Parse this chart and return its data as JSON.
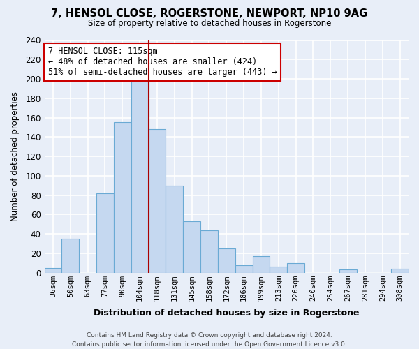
{
  "title": "7, HENSOL CLOSE, ROGERSTONE, NEWPORT, NP10 9AG",
  "subtitle": "Size of property relative to detached houses in Rogerstone",
  "xlabel": "Distribution of detached houses by size in Rogerstone",
  "ylabel": "Number of detached properties",
  "bin_labels": [
    "36sqm",
    "50sqm",
    "63sqm",
    "77sqm",
    "90sqm",
    "104sqm",
    "118sqm",
    "131sqm",
    "145sqm",
    "158sqm",
    "172sqm",
    "186sqm",
    "199sqm",
    "213sqm",
    "226sqm",
    "240sqm",
    "254sqm",
    "267sqm",
    "281sqm",
    "294sqm",
    "308sqm"
  ],
  "bar_values": [
    5,
    35,
    0,
    82,
    155,
    200,
    148,
    90,
    53,
    44,
    25,
    8,
    17,
    6,
    10,
    0,
    0,
    3,
    0,
    0,
    4
  ],
  "bar_color": "#c5d8f0",
  "bar_edge_color": "#6aaad4",
  "vline_index": 6,
  "vline_color": "#aa0000",
  "annotation_title": "7 HENSOL CLOSE: 115sqm",
  "annotation_line1": "← 48% of detached houses are smaller (424)",
  "annotation_line2": "51% of semi-detached houses are larger (443) →",
  "annotation_box_color": "#ffffff",
  "annotation_box_edge": "#cc0000",
  "ylim_max": 240,
  "yticks": [
    0,
    20,
    40,
    60,
    80,
    100,
    120,
    140,
    160,
    180,
    200,
    220,
    240
  ],
  "footer_line1": "Contains HM Land Registry data © Crown copyright and database right 2024.",
  "footer_line2": "Contains public sector information licensed under the Open Government Licence v3.0.",
  "background_color": "#e8eef8",
  "grid_color": "#ffffff"
}
